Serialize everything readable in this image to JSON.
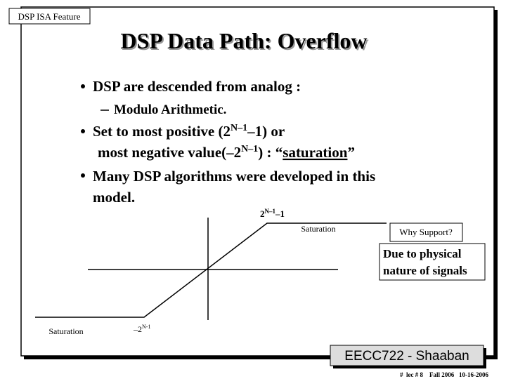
{
  "header": {
    "tag": "DSP ISA Feature",
    "title": "DSP Data Path:  Overflow"
  },
  "bullets": [
    {
      "text": "DSP are descended from analog :",
      "sub": [
        "Modulo Arithmetic."
      ]
    },
    {
      "line1": [
        "Set to most positive (2",
        "N–1",
        "–1) or"
      ],
      "line2": [
        "most negative value(–2",
        "N–1",
        ") : “",
        "saturation",
        "”"
      ]
    },
    {
      "line1": "Many DSP algorithms were developed in this",
      "line2": "model."
    }
  ],
  "diagram": {
    "max_label": [
      "2",
      "N–1",
      "–1"
    ],
    "saturation_right": "Saturation",
    "saturation_left": "Saturation",
    "min_label": [
      "–2",
      "N-1"
    ],
    "why": "Why Support?",
    "reason_lines": [
      "Due to physical",
      "nature of signals"
    ]
  },
  "footer": {
    "course": "EECC722 - Shaaban",
    "note": "#  lec # 8    Fall 2006   10-16-2006"
  }
}
